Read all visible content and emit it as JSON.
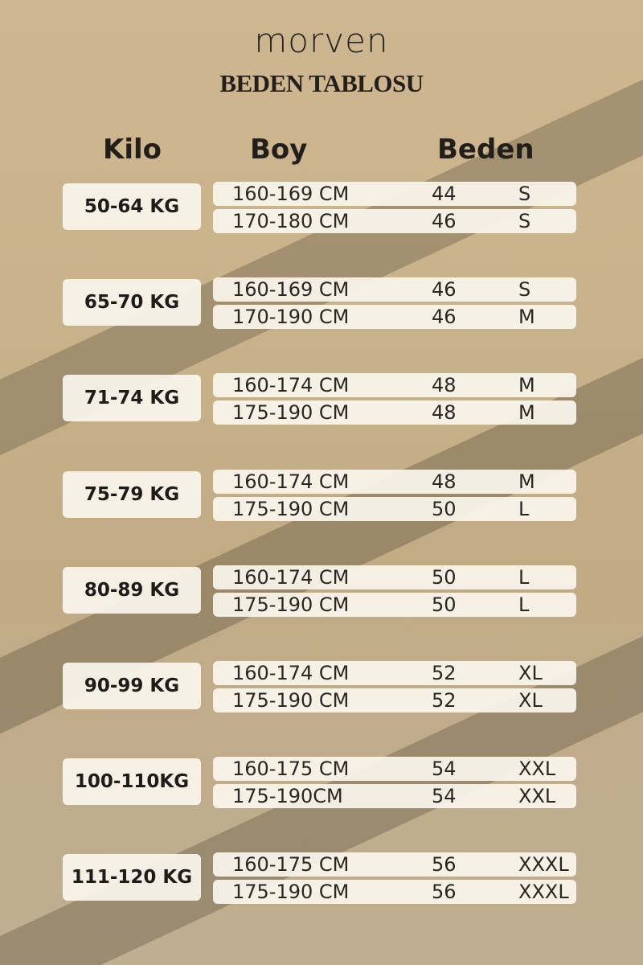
{
  "brand": "morven",
  "title": "BEDEN TABLOSU",
  "headers": {
    "kilo": "Kilo",
    "boy": "Boy",
    "beden": "Beden"
  },
  "groups": [
    {
      "kilo": "50-64 KG",
      "rows": [
        {
          "boy": "160-169 CM",
          "num": "44",
          "size": "S"
        },
        {
          "boy": "170-180 CM",
          "num": "46",
          "size": "S"
        }
      ]
    },
    {
      "kilo": "65-70 KG",
      "rows": [
        {
          "boy": "160-169 CM",
          "num": "46",
          "size": "S"
        },
        {
          "boy": "170-190 CM",
          "num": "46",
          "size": "M"
        }
      ]
    },
    {
      "kilo": "71-74 KG",
      "rows": [
        {
          "boy": "160-174 CM",
          "num": "48",
          "size": "M"
        },
        {
          "boy": "175-190 CM",
          "num": "48",
          "size": "M"
        }
      ]
    },
    {
      "kilo": "75-79 KG",
      "rows": [
        {
          "boy": "160-174 CM",
          "num": "48",
          "size": "M"
        },
        {
          "boy": "175-190 CM",
          "num": "50",
          "size": "L"
        }
      ]
    },
    {
      "kilo": "80-89 KG",
      "rows": [
        {
          "boy": "160-174 CM",
          "num": "50",
          "size": "L"
        },
        {
          "boy": "175-190 CM",
          "num": "50",
          "size": "L"
        }
      ]
    },
    {
      "kilo": "90-99 KG",
      "rows": [
        {
          "boy": "160-174 CM",
          "num": "52",
          "size": "XL"
        },
        {
          "boy": "175-190 CM",
          "num": "52",
          "size": "XL"
        }
      ]
    },
    {
      "kilo": "100-110KG",
      "rows": [
        {
          "boy": "160-175 CM",
          "num": "54",
          "size": "XXL"
        },
        {
          "boy": "175-190CM",
          "num": "54",
          "size": "XXL"
        }
      ]
    },
    {
      "kilo": "111-120 KG",
      "rows": [
        {
          "boy": "160-175 CM",
          "num": "56",
          "size": "XXXL"
        },
        {
          "boy": "175-190 CM",
          "num": "56",
          "size": "XXXL"
        }
      ]
    }
  ]
}
